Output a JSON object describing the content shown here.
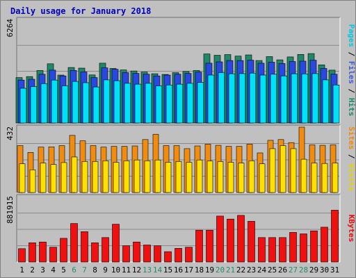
{
  "chart_data": {
    "type": "bar",
    "title": "Daily usage for January 2018",
    "categories": [
      "1",
      "2",
      "3",
      "4",
      "5",
      "6",
      "7",
      "8",
      "9",
      "10",
      "11",
      "12",
      "13",
      "14",
      "15",
      "16",
      "17",
      "18",
      "19",
      "20",
      "21",
      "22",
      "23",
      "24",
      "25",
      "26",
      "27",
      "28",
      "29",
      "30",
      "31"
    ],
    "weekend_days": [
      "6",
      "7",
      "13",
      "14",
      "20",
      "21",
      "27",
      "28"
    ],
    "panels": [
      {
        "id": "top",
        "max_label": "6264",
        "ymax": 6264,
        "labels": [
          {
            "text": "Pages",
            "color": "#00c8e0"
          },
          {
            "text": " / ",
            "color": "#000000"
          },
          {
            "text": "Files",
            "color": "#3a5ad8"
          },
          {
            "text": " / ",
            "color": "#000000"
          },
          {
            "text": "Hits",
            "color": "#1a8a6a"
          }
        ],
        "series": [
          {
            "name": "Hits",
            "color": "#1e8868",
            "values": [
              2750,
              2810,
              3180,
              3580,
              2900,
              3360,
              3320,
              2910,
              3620,
              3300,
              3210,
              3150,
              3080,
              2980,
              2940,
              3050,
              3120,
              3180,
              4180,
              4100,
              4140,
              4050,
              4120,
              3780,
              4020,
              3820,
              4000,
              4150,
              4200,
              3520,
              3200
            ]
          },
          {
            "name": "Files",
            "color": "#2848e0",
            "values": [
              2600,
              2650,
              2950,
              3200,
              2850,
              3180,
              3090,
              2750,
              3340,
              3250,
              3050,
              3000,
              2950,
              2850,
              2900,
              2950,
              3000,
              3080,
              3620,
              3700,
              3780,
              3780,
              3800,
              3620,
              3680,
              3600,
              3720,
              3740,
              3800,
              3300,
              2950
            ]
          },
          {
            "name": "Pages",
            "color": "#00e0f8",
            "values": [
              2100,
              2200,
              2380,
              2600,
              2250,
              2520,
              2440,
              2180,
              2610,
              2560,
              2400,
              2350,
              2400,
              2250,
              2300,
              2350,
              2400,
              2450,
              2900,
              3050,
              2980,
              2990,
              3020,
              2900,
              2950,
              2850,
              2980,
              2970,
              2990,
              2610,
              2300
            ]
          }
        ]
      },
      {
        "id": "middle",
        "max_label": "432",
        "ymax": 432,
        "labels": [
          {
            "text": "Sites",
            "color": "#f08a00"
          },
          {
            "text": " / ",
            "color": "#000000"
          },
          {
            "text": "Visits",
            "color": "#e8d000"
          }
        ],
        "series": [
          {
            "name": "Visits",
            "color": "#f08c10",
            "values": [
              310,
              265,
              300,
              302,
              310,
              378,
              342,
              310,
              300,
              305,
              305,
              308,
              350,
              385,
              310,
              310,
              290,
              308,
              320,
              312,
              305,
              305,
              320,
              262,
              345,
              350,
              330,
              432,
              315,
              312,
              315
            ]
          },
          {
            "name": "Sites",
            "color": "#ffe000",
            "values": [
              190,
              150,
              195,
              185,
              198,
              235,
              205,
              205,
              210,
              200,
              210,
              215,
              210,
              215,
              200,
              205,
              200,
              215,
              208,
              205,
              200,
              195,
              210,
              190,
              290,
              310,
              290,
              220,
              195,
              192,
              195
            ]
          }
        ]
      },
      {
        "id": "bottom",
        "max_label": "881915",
        "ymax": 881915,
        "labels": [
          {
            "text": "KBytes",
            "color": "#e01010"
          }
        ],
        "series": [
          {
            "name": "KBytes",
            "color": "#f01010",
            "values": [
              180000,
              260000,
              270000,
              200000,
              320000,
              520000,
              410000,
              260000,
              330000,
              510000,
              220000,
              270000,
              230000,
              220000,
              140000,
              185000,
              200000,
              430000,
              430000,
              620000,
              580000,
              630000,
              550000,
              330000,
              330000,
              330000,
              400000,
              380000,
              420000,
              470000,
              700000
            ]
          }
        ]
      }
    ]
  }
}
